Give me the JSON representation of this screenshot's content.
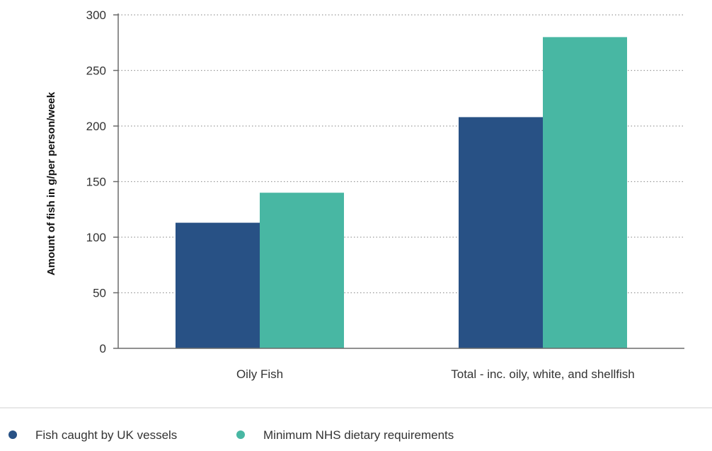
{
  "chart_data": {
    "type": "bar",
    "title": "",
    "xlabel": "",
    "ylabel": "Amount of fish in g/per person/week",
    "categories": [
      "Oily Fish",
      "Total - inc. oily, white, and shellfish"
    ],
    "series": [
      {
        "name": "Fish caught by UK vessels",
        "values": [
          113,
          208
        ],
        "color": "#285185"
      },
      {
        "name": "Minimum NHS dietary requirements",
        "values": [
          140,
          280
        ],
        "color": "#48b7a3"
      }
    ],
    "ylim": [
      0,
      300
    ],
    "yticks": [
      0,
      50,
      100,
      150,
      200,
      250,
      300
    ],
    "grid": true,
    "grid_style": "dotted",
    "legend_position": "bottom-left"
  }
}
